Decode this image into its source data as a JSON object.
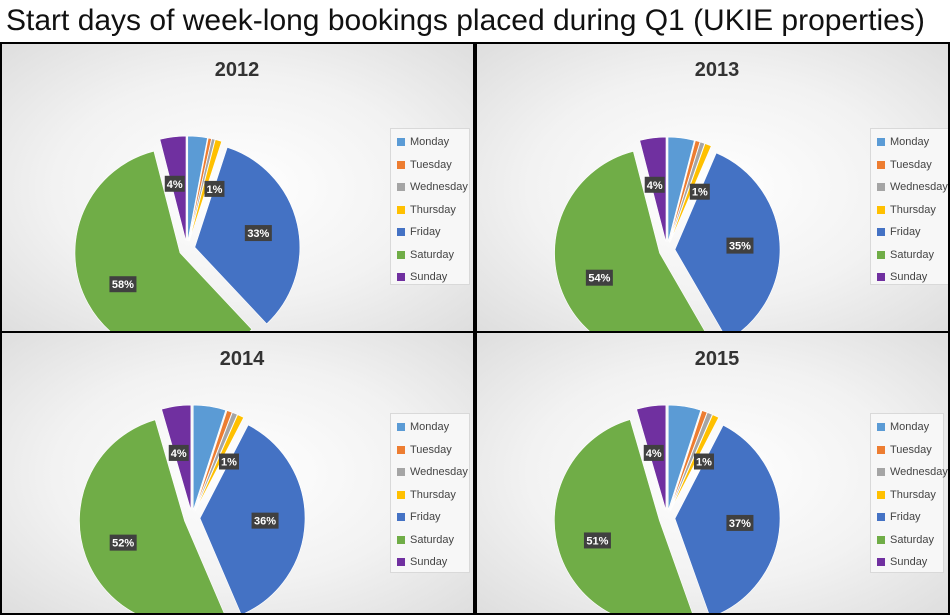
{
  "page_title": "Start days of week-long bookings placed during Q1  (UKIE properties)",
  "colors": {
    "Monday": "#5b9bd5",
    "Tuesday": "#ed7d31",
    "Wednesday": "#a5a5a5",
    "Thursday": "#ffc000",
    "Friday": "#4472c4",
    "Saturday": "#70ad47",
    "Sunday": "#7030a0"
  },
  "chart_data": [
    {
      "type": "pie",
      "title": "2012",
      "categories": [
        "Monday",
        "Tuesday",
        "Wednesday",
        "Thursday",
        "Friday",
        "Saturday",
        "Sunday"
      ],
      "values": [
        3,
        0.5,
        0.5,
        1,
        33,
        58,
        4
      ],
      "labels": [
        {
          "category": "Sunday",
          "text": "4%"
        },
        {
          "category": "Thursday",
          "text": "1%"
        },
        {
          "category": "Friday",
          "text": "33%"
        },
        {
          "category": "Saturday",
          "text": "58%"
        }
      ],
      "legend": [
        "Monday",
        "Tuesday",
        "Wednesday",
        "Thursday",
        "Friday",
        "Saturday",
        "Sunday"
      ]
    },
    {
      "type": "pie",
      "title": "2013",
      "categories": [
        "Monday",
        "Tuesday",
        "Wednesday",
        "Thursday",
        "Friday",
        "Saturday",
        "Sunday"
      ],
      "values": [
        4,
        0.7,
        0.7,
        1,
        35,
        54,
        4
      ],
      "labels": [
        {
          "category": "Sunday",
          "text": "4%"
        },
        {
          "category": "Thursday",
          "text": "1%"
        },
        {
          "category": "Friday",
          "text": "35%"
        },
        {
          "category": "Saturday",
          "text": "54%"
        }
      ],
      "legend": [
        "Monday",
        "Tuesday",
        "Wednesday",
        "Thursday",
        "Friday",
        "Saturday",
        "Sunday"
      ]
    },
    {
      "type": "pie",
      "title": "2014",
      "categories": [
        "Monday",
        "Tuesday",
        "Wednesday",
        "Thursday",
        "Friday",
        "Saturday",
        "Sunday"
      ],
      "values": [
        5,
        0.8,
        0.8,
        1,
        36,
        52,
        4.5
      ],
      "labels": [
        {
          "category": "Sunday",
          "text": "4%"
        },
        {
          "category": "Thursday",
          "text": "1%"
        },
        {
          "category": "Friday",
          "text": "36%"
        },
        {
          "category": "Saturday",
          "text": "52%"
        }
      ],
      "legend": [
        "Monday",
        "Tuesday",
        "Wednesday",
        "Thursday",
        "Friday",
        "Saturday",
        "Sunday"
      ]
    },
    {
      "type": "pie",
      "title": "2015",
      "categories": [
        "Monday",
        "Tuesday",
        "Wednesday",
        "Thursday",
        "Friday",
        "Saturday",
        "Sunday"
      ],
      "values": [
        5,
        0.8,
        0.8,
        1,
        37,
        51,
        4.5
      ],
      "labels": [
        {
          "category": "Sunday",
          "text": "4%"
        },
        {
          "category": "Thursday",
          "text": "1%"
        },
        {
          "category": "Friday",
          "text": "37%"
        },
        {
          "category": "Saturday",
          "text": "51%"
        }
      ],
      "legend": [
        "Monday",
        "Tuesday",
        "Wednesday",
        "Thursday",
        "Friday",
        "Saturday",
        "Sunday"
      ]
    }
  ]
}
